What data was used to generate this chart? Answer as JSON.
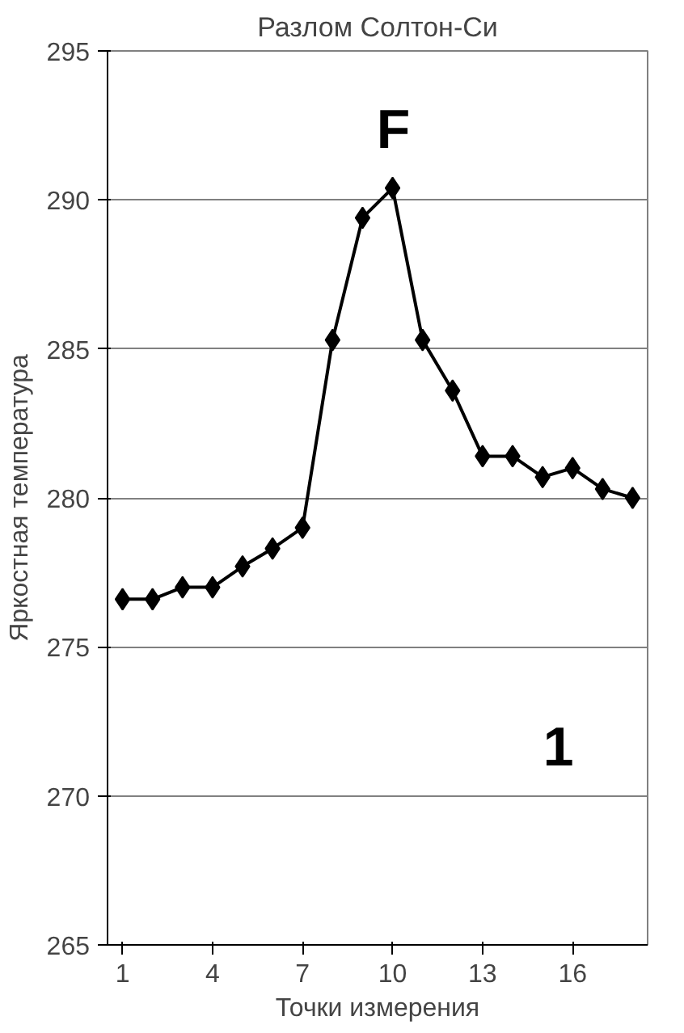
{
  "chart_data": {
    "type": "line",
    "title": "Разлом Солтон-Си",
    "xlabel": "Точки измерения",
    "ylabel": "Яркостная температура",
    "x": [
      1,
      2,
      3,
      4,
      5,
      6,
      7,
      8,
      9,
      10,
      11,
      12,
      13,
      14,
      15,
      16,
      17,
      18
    ],
    "series": [
      {
        "color": "#000000",
        "values": [
          276.6,
          276.6,
          277.0,
          277.0,
          277.7,
          278.3,
          279.0,
          285.3,
          289.4,
          290.4,
          285.3,
          283.6,
          281.4,
          281.4,
          280.7,
          281.0,
          280.3,
          280.0
        ]
      }
    ],
    "xlim": [
      0.5,
      18.5
    ],
    "xticks": [
      1,
      4,
      7,
      10,
      13,
      16
    ],
    "ylim": [
      265,
      295
    ],
    "yticks": [
      265,
      270,
      275,
      280,
      285,
      290,
      295
    ],
    "grid": "y",
    "marker": "diamond",
    "line_style": "solid",
    "annotations": [
      "F",
      "1"
    ]
  }
}
